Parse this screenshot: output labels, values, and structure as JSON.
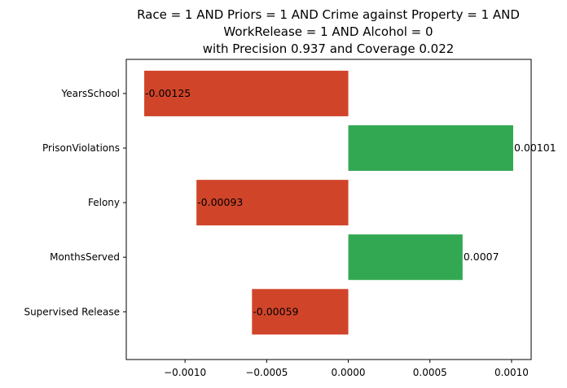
{
  "chart_data": {
    "type": "bar",
    "orientation": "horizontal",
    "title_lines": [
      "Race = 1 AND Priors = 1 AND Crime against Property = 1 AND",
      "WorkRelease = 1 AND Alcohol = 0",
      "with Precision 0.937 and Coverage 0.022"
    ],
    "categories": [
      "YearsSchool",
      "PrisonViolations",
      "Felony",
      "MonthsServed",
      "Supervised Release"
    ],
    "values": [
      -0.00125,
      0.00101,
      -0.00093,
      0.0007,
      -0.00059
    ],
    "value_labels": [
      "-0.00125",
      "0.00101",
      "-0.00093",
      "0.0007",
      "-0.00059"
    ],
    "xlim": [
      -0.00136,
      0.00112
    ],
    "xticks": [
      -0.001,
      -0.0005,
      0.0,
      0.0005,
      0.001
    ],
    "xtick_labels": [
      "−0.0010",
      "−0.0005",
      "0.0000",
      "0.0005",
      "0.0010"
    ],
    "xlabel": "",
    "ylabel": "",
    "grid": false,
    "colors": {
      "positive": "#33a852",
      "negative": "#d0452a"
    }
  }
}
